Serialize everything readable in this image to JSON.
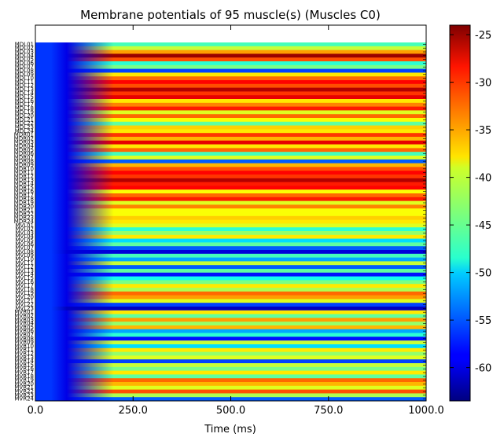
{
  "chart_data": {
    "type": "heatmap",
    "title": "Membrane potentials of 95 muscle(s) (Muscles C0)",
    "xlabel": "Time (ms)",
    "ylabel": "",
    "xlim": [
      0,
      1000
    ],
    "x_ticks": [
      "0.0",
      "250.0",
      "500.0",
      "750.0",
      "1000.0"
    ],
    "colorbar": {
      "vmin": -63.5,
      "vmax": -24,
      "ticks": [
        "-25",
        "-30",
        "-35",
        "-40",
        "-45",
        "-50",
        "-55",
        "-60"
      ],
      "colormap": "jet"
    },
    "muscles": [
      "MDL01",
      "MDL02",
      "MDL03",
      "MDL04",
      "MDL05",
      "MDL06",
      "MDL07",
      "MDL08",
      "MDL09",
      "MDL10",
      "MDL11",
      "MDL12",
      "MDL13",
      "MDL14",
      "MDL15",
      "MDL16",
      "MDL17",
      "MDL18",
      "MDL19",
      "MDL20",
      "MDL21",
      "MDL22",
      "MDL23",
      "MDL24",
      "MDR01",
      "MDR02",
      "MDR03",
      "MDR04",
      "MDR05",
      "MDR06",
      "MDR07",
      "MDR08",
      "MDR09",
      "MDR10",
      "MDR11",
      "MDR12",
      "MDR13",
      "MDR14",
      "MDR15",
      "MDR16",
      "MDR17",
      "MDR18",
      "MDR19",
      "MDR20",
      "MDR21",
      "MDR22",
      "MDR23",
      "MDR24",
      "MVL01",
      "MVL02",
      "MVL03",
      "MVL04",
      "MVL05",
      "MVL06",
      "MVL07",
      "MVL08",
      "MVL09",
      "MVL10",
      "MVL11",
      "MVL12",
      "MVL13",
      "MVL14",
      "MVL15",
      "MVL16",
      "MVL17",
      "MVL18",
      "MVL19",
      "MVL20",
      "MVL21",
      "MVL22",
      "MVL23",
      "MVR01",
      "MVR02",
      "MVR03",
      "MVR04",
      "MVR05",
      "MVR06",
      "MVR07",
      "MVR08",
      "MVR09",
      "MVR10",
      "MVR11",
      "MVR12",
      "MVR13",
      "MVR14",
      "MVR15",
      "MVR16",
      "MVR17",
      "MVR18",
      "MVR19",
      "MVR20",
      "MVR21",
      "MVR22",
      "MVR23",
      "MVR24"
    ],
    "steady_potentials_mV": [
      -46,
      -41,
      -35,
      -25,
      -32,
      -47,
      -44,
      -56,
      -38,
      -33,
      -29,
      -32,
      -26,
      -31,
      -28,
      -38,
      -34,
      -30,
      -40,
      -33,
      -39,
      -45,
      -37,
      -38,
      -31,
      -36,
      -28,
      -38,
      -33,
      -46,
      -40,
      -55,
      -36,
      -32,
      -29,
      -31,
      -26,
      -30,
      -29,
      -39,
      -33,
      -30,
      -40,
      -34,
      -39,
      -39,
      -37,
      -38,
      -40,
      -47,
      -43,
      -38,
      -50,
      -45,
      -55,
      -60,
      -46,
      -52,
      -41,
      -55,
      -45,
      -58,
      -48,
      -44,
      -38,
      -42,
      -33,
      -35,
      -40,
      -56,
      -61,
      -38,
      -45,
      -35,
      -43,
      -36,
      -52,
      -47,
      -58,
      -41,
      -50,
      -38,
      -43,
      -40,
      -56,
      -41,
      -44,
      -38,
      -45,
      -33,
      -36,
      -40,
      -32,
      -42,
      -55
    ],
    "onset_potential_mV": -56.5,
    "onset_dip_potential_mV": -59.5,
    "onset_end_ms": 40,
    "transition_end_ms": 200
  }
}
